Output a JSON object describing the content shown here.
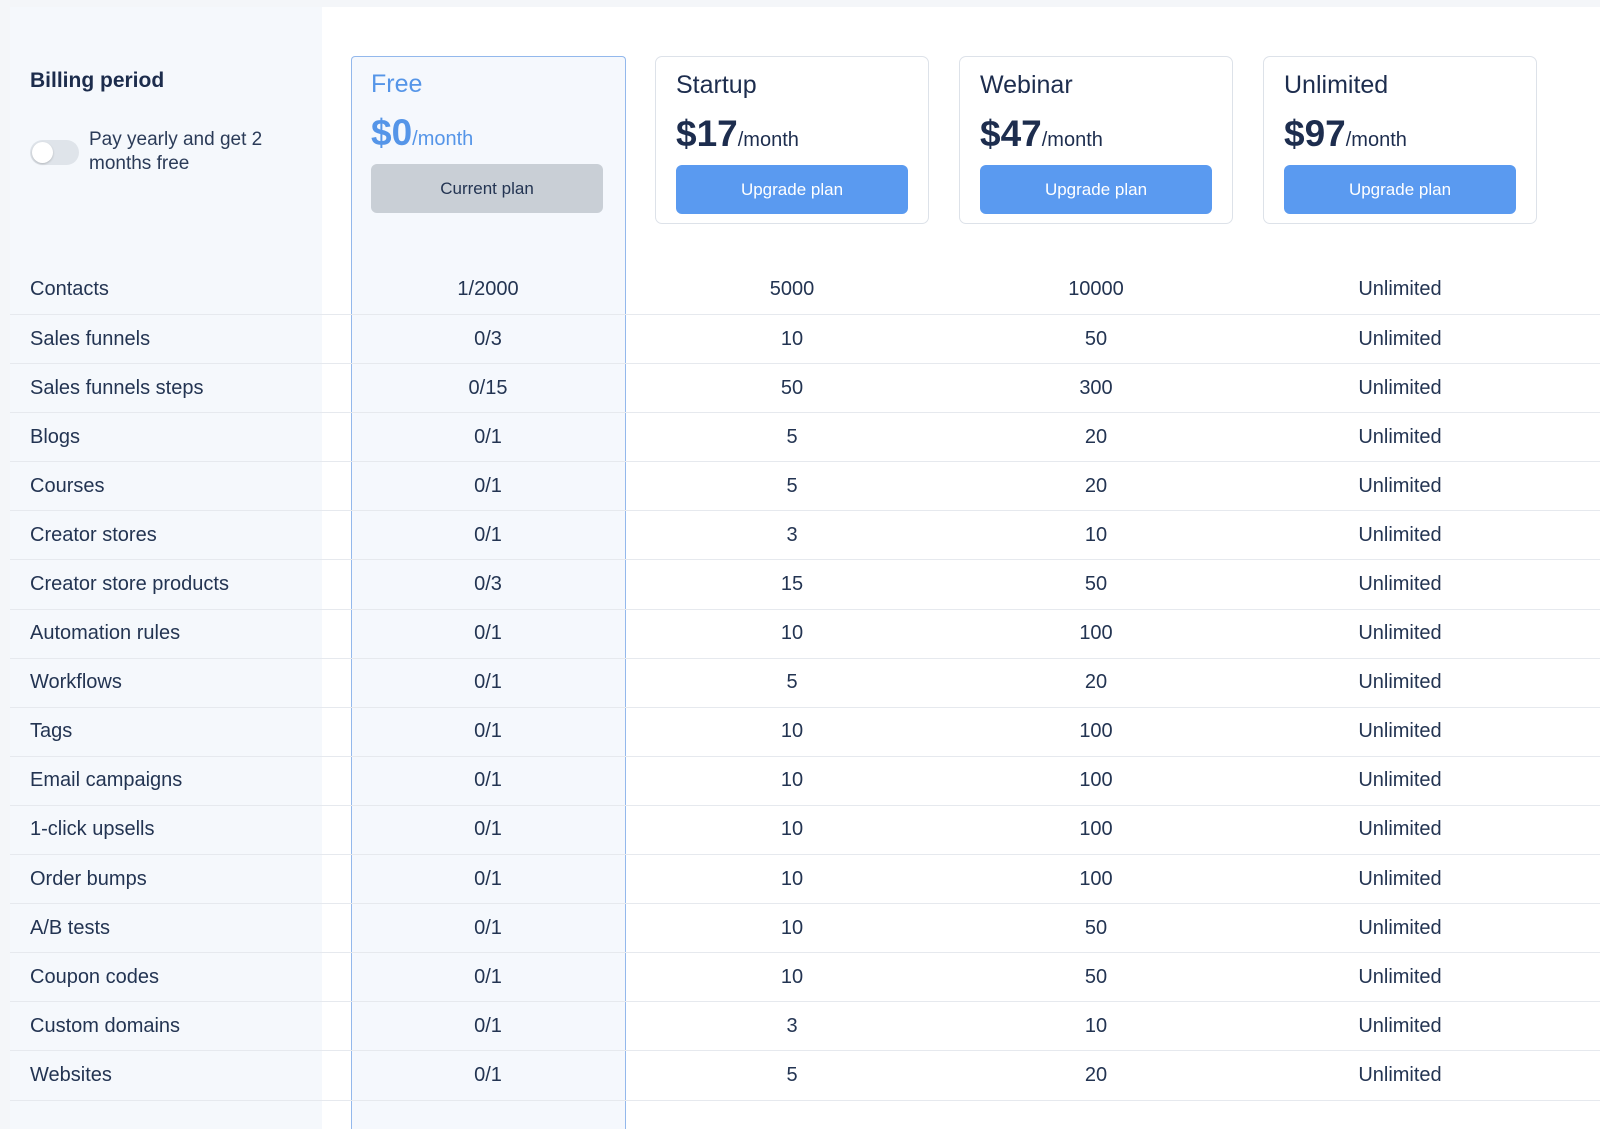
{
  "billing": {
    "title": "Billing period",
    "toggle_text": "Pay yearly and get 2 months free",
    "yearly_enabled": false
  },
  "plans": [
    {
      "name": "Free",
      "price": "$0",
      "period": "/month",
      "button": "Current plan",
      "current": true
    },
    {
      "name": "Startup",
      "price": "$17",
      "period": "/month",
      "button": "Upgrade plan",
      "current": false
    },
    {
      "name": "Webinar",
      "price": "$47",
      "period": "/month",
      "button": "Upgrade plan",
      "current": false
    },
    {
      "name": "Unlimited",
      "price": "$97",
      "period": "/month",
      "button": "Upgrade plan",
      "current": false
    }
  ],
  "features": [
    {
      "label": "Contacts",
      "values": [
        "1/2000",
        "5000",
        "10000",
        "Unlimited"
      ]
    },
    {
      "label": "Sales funnels",
      "values": [
        "0/3",
        "10",
        "50",
        "Unlimited"
      ]
    },
    {
      "label": "Sales funnels steps",
      "values": [
        "0/15",
        "50",
        "300",
        "Unlimited"
      ]
    },
    {
      "label": "Blogs",
      "values": [
        "0/1",
        "5",
        "20",
        "Unlimited"
      ]
    },
    {
      "label": "Courses",
      "values": [
        "0/1",
        "5",
        "20",
        "Unlimited"
      ]
    },
    {
      "label": "Creator stores",
      "values": [
        "0/1",
        "3",
        "10",
        "Unlimited"
      ]
    },
    {
      "label": "Creator store products",
      "values": [
        "0/3",
        "15",
        "50",
        "Unlimited"
      ]
    },
    {
      "label": "Automation rules",
      "values": [
        "0/1",
        "10",
        "100",
        "Unlimited"
      ]
    },
    {
      "label": "Workflows",
      "values": [
        "0/1",
        "5",
        "20",
        "Unlimited"
      ]
    },
    {
      "label": "Tags",
      "values": [
        "0/1",
        "10",
        "100",
        "Unlimited"
      ]
    },
    {
      "label": "Email campaigns",
      "values": [
        "0/1",
        "10",
        "100",
        "Unlimited"
      ]
    },
    {
      "label": "1-click upsells",
      "values": [
        "0/1",
        "10",
        "100",
        "Unlimited"
      ]
    },
    {
      "label": "Order bumps",
      "values": [
        "0/1",
        "10",
        "100",
        "Unlimited"
      ]
    },
    {
      "label": "A/B tests",
      "values": [
        "0/1",
        "10",
        "50",
        "Unlimited"
      ]
    },
    {
      "label": "Coupon codes",
      "values": [
        "0/1",
        "10",
        "50",
        "Unlimited"
      ]
    },
    {
      "label": "Custom domains",
      "values": [
        "0/1",
        "3",
        "10",
        "Unlimited"
      ]
    },
    {
      "label": "Websites",
      "values": [
        "0/1",
        "5",
        "20",
        "Unlimited"
      ]
    }
  ],
  "colors": {
    "accent": "#5a9af0",
    "free_highlight": "#5595e8",
    "text": "#1d2d4e"
  }
}
